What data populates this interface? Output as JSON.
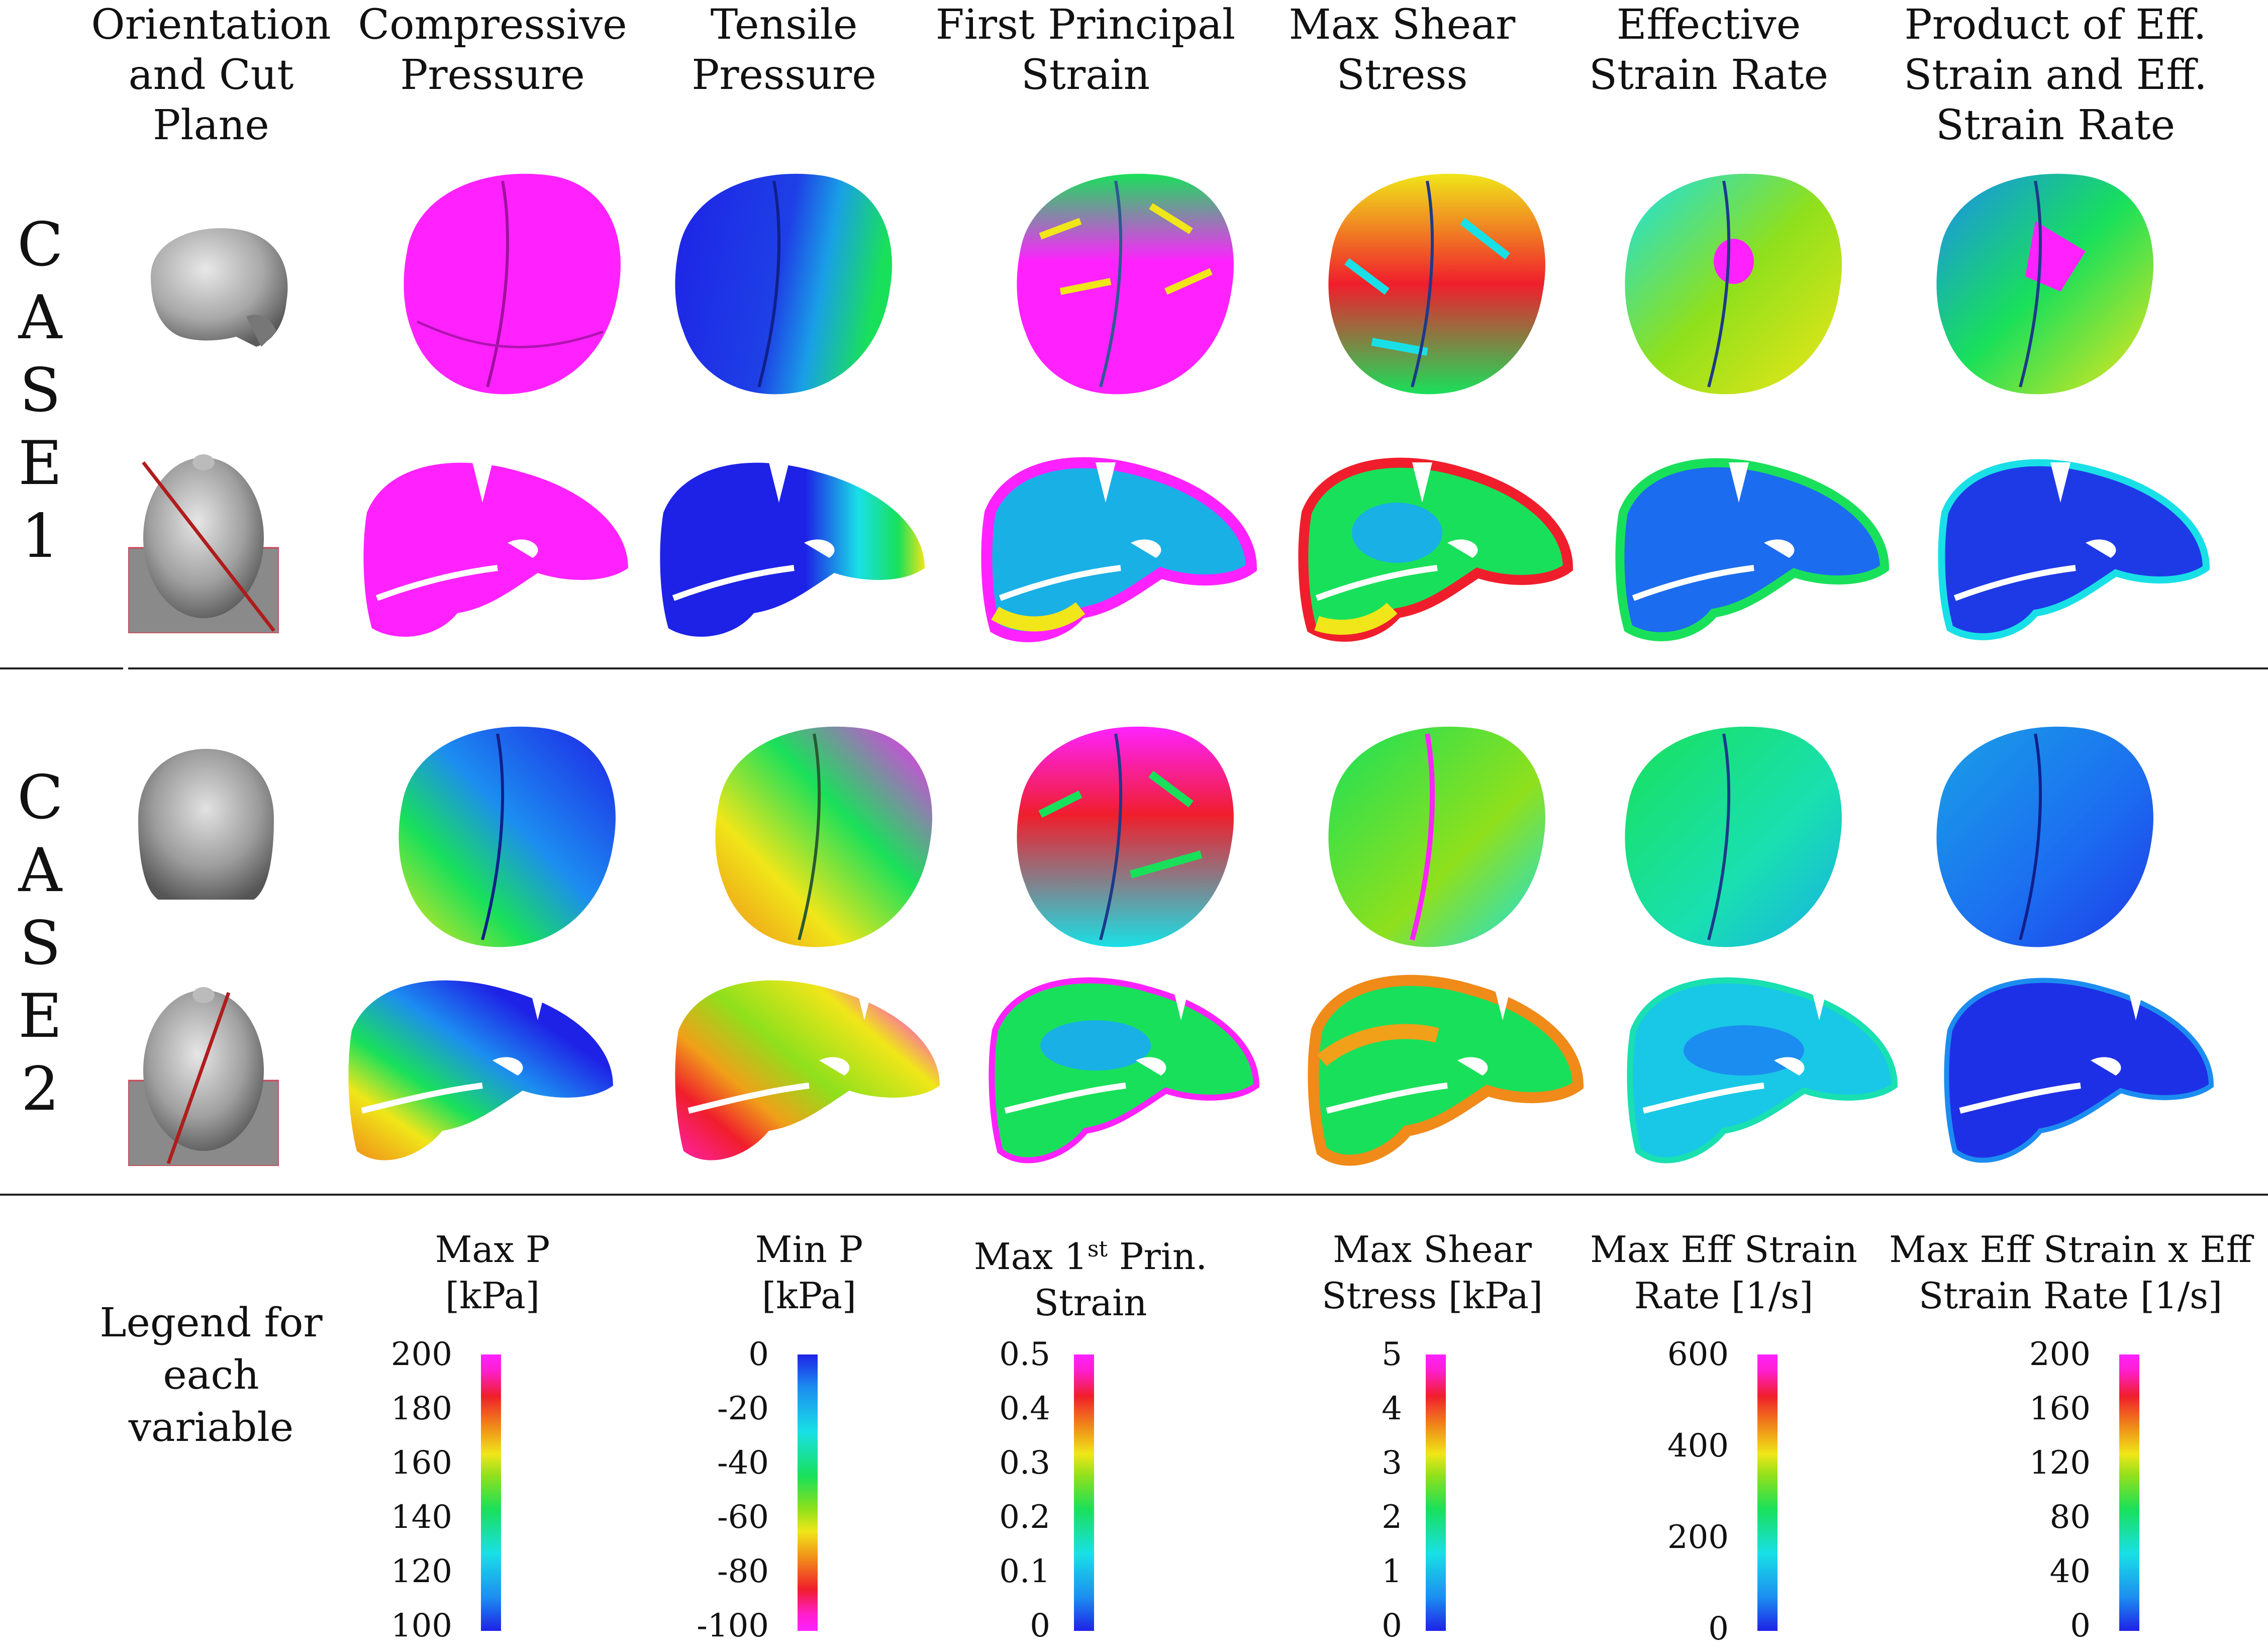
{
  "columns": [
    "Orientation\nand Cut\nPlane",
    "Compressive\nPressure",
    "Tensile\nPressure",
    "First Principal\nStrain",
    "Max Shear\nStress",
    "Effective\nStrain Rate",
    "Product of Eff.\nStrain and Eff.\nStrain Rate"
  ],
  "cases": [
    {
      "letters": [
        "C",
        "A",
        "S",
        "E",
        "1"
      ]
    },
    {
      "letters": [
        "C",
        "A",
        "S",
        "E",
        "2"
      ]
    }
  ],
  "legend_label": "Legend for\neach\nvariable",
  "legends": [
    {
      "title": "Max P\n[kPa]",
      "ticks": [
        "200",
        "180",
        "160",
        "140",
        "120",
        "100"
      ],
      "inverted": false
    },
    {
      "title": "Min P\n[kPa]",
      "ticks": [
        "0",
        "-20",
        "-40",
        "-60",
        "-80",
        "-100"
      ],
      "inverted": true
    },
    {
      "title_pre": "Max 1",
      "title_sup": "st",
      "title_post": " Prin.\nStrain",
      "ticks": [
        "0.5",
        "0.4",
        "0.3",
        "0.2",
        "0.1",
        "0"
      ],
      "inverted": false
    },
    {
      "title": "Max Shear\nStress [kPa]",
      "ticks": [
        "5",
        "4",
        "3",
        "2",
        "1",
        "0"
      ],
      "inverted": false
    },
    {
      "title": "Max Eff Strain\nRate [1/s]",
      "ticks": [
        "600",
        "400",
        "200",
        "0"
      ],
      "inverted": false
    },
    {
      "title": "Max Eff Strain x Eff\nStrain Rate [1/s]",
      "ticks": [
        "200",
        "160",
        "120",
        "80",
        "40",
        "0"
      ],
      "inverted": false
    }
  ],
  "colors": {
    "magenta": "#ff22ff",
    "blue": "#1e22e6",
    "cyan": "#19e0e6",
    "green": "#19e05a",
    "yellow": "#f0e619",
    "red": "#f01e2c",
    "cut_line": "#b01c1c",
    "skull": "#9a9a9a"
  }
}
